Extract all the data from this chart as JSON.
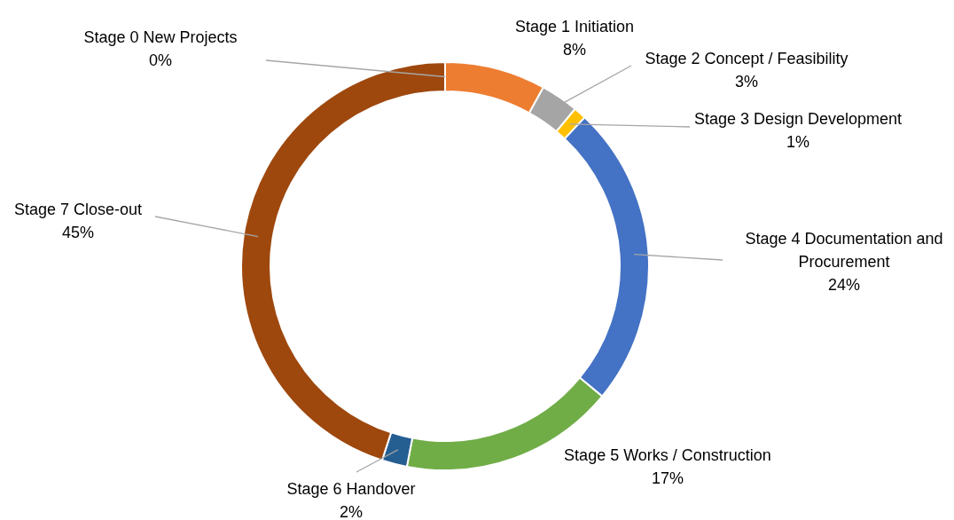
{
  "chart_data": {
    "type": "donut",
    "categories": [
      "Stage 0 New Projects",
      "Stage 1 Initiation",
      "Stage 2 Concept / Feasibility",
      "Stage 3 Design Development",
      "Stage 4 Documentation and Procurement",
      "Stage 5 Works / Construction",
      "Stage 6 Handover",
      "Stage 7 Close-out"
    ],
    "values": [
      0,
      8,
      3,
      1,
      24,
      17,
      2,
      45
    ],
    "value_labels": [
      "0%",
      "8%",
      "3%",
      "1%",
      "24%",
      "17%",
      "2%",
      "45%"
    ],
    "colors": [
      "#4472c4",
      "#ed7d31",
      "#a5a5a5",
      "#ffc000",
      "#4472c4",
      "#70ad47",
      "#255e91",
      "#9e480e"
    ]
  }
}
